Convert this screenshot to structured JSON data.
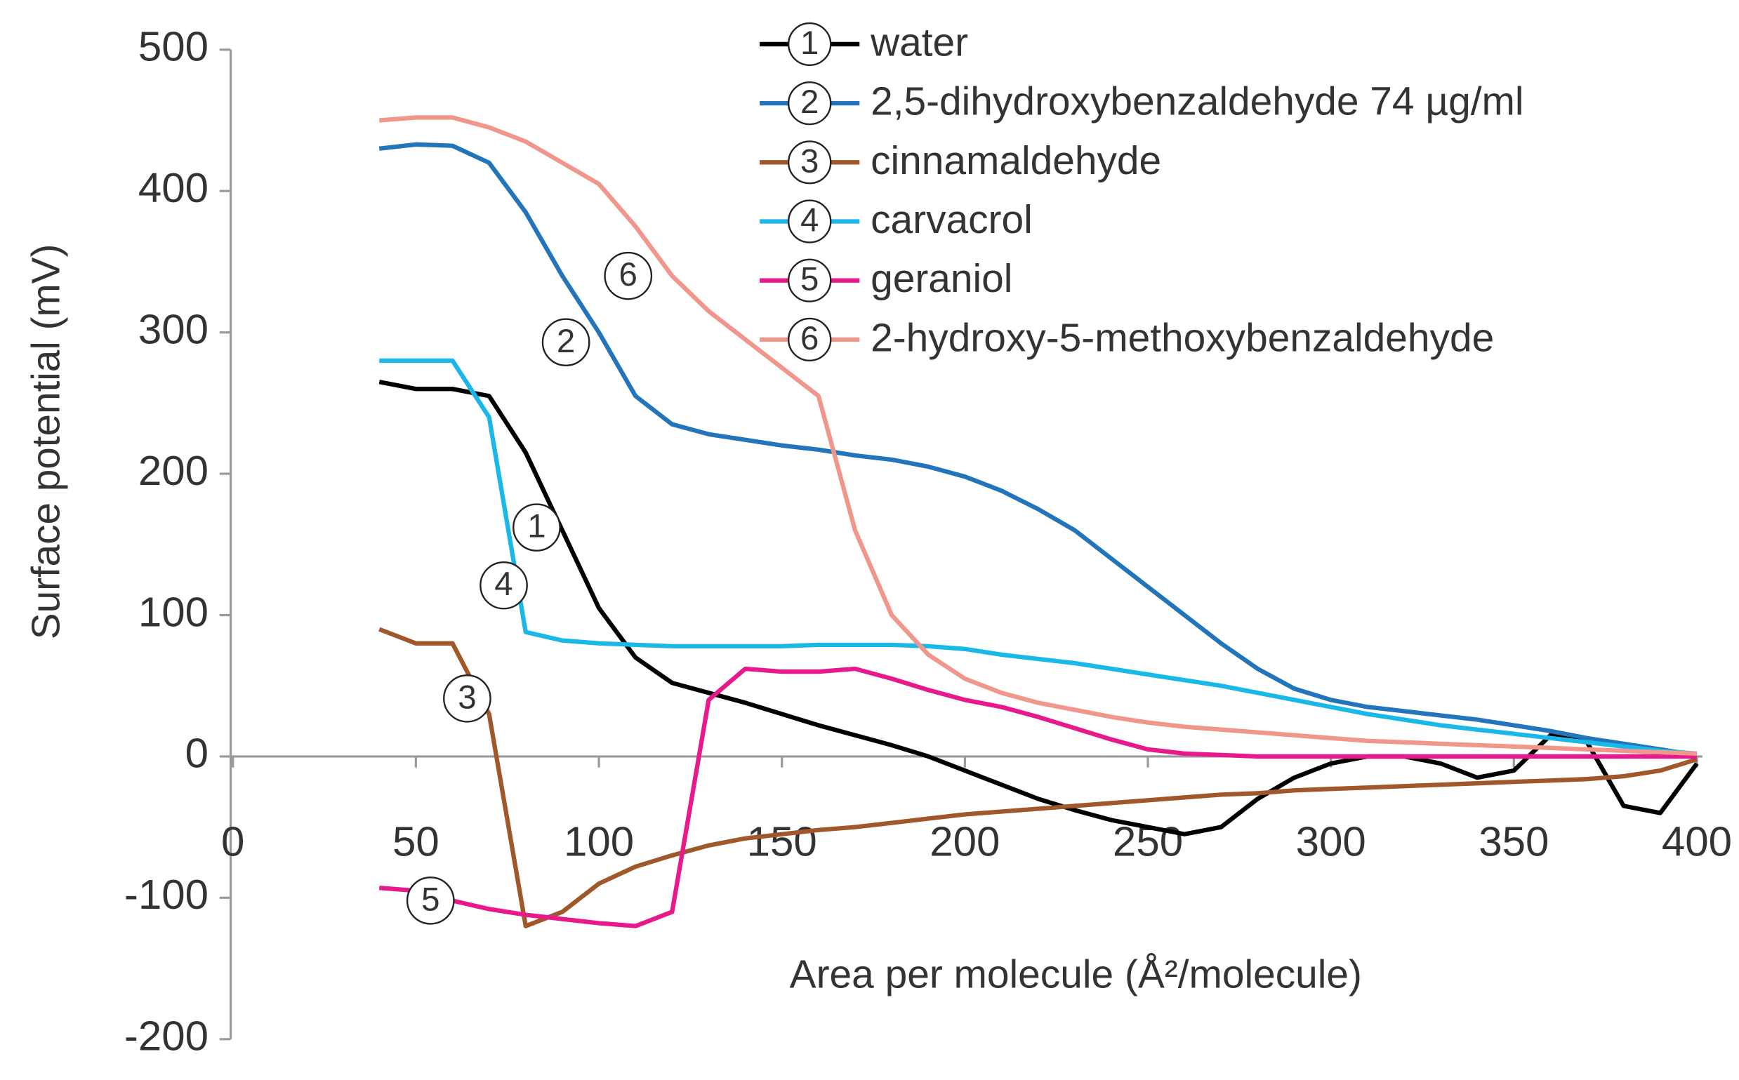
{
  "chart_data": {
    "type": "line",
    "x_label": "Area per molecule (Å²/molecule)",
    "y_label": "Surface potential (mV)",
    "xlim": [
      0,
      400
    ],
    "xticks": [
      0,
      50,
      100,
      150,
      200,
      250,
      300,
      350,
      400
    ],
    "ylim": [
      -200,
      500
    ],
    "yticks": [
      -200,
      -100,
      0,
      100,
      200,
      300,
      400,
      500
    ],
    "grid": false,
    "legend": "top-right",
    "x": [
      40,
      50,
      60,
      70,
      80,
      90,
      100,
      110,
      120,
      130,
      140,
      150,
      160,
      170,
      180,
      190,
      200,
      210,
      220,
      230,
      240,
      250,
      260,
      270,
      280,
      290,
      300,
      310,
      320,
      330,
      340,
      350,
      360,
      370,
      380,
      390,
      400
    ],
    "series": [
      {
        "name": "water",
        "label": "1",
        "color": "#000000",
        "values": [
          265,
          260,
          260,
          255,
          215,
          160,
          105,
          70,
          52,
          45,
          38,
          30,
          22,
          15,
          8,
          0,
          -10,
          -20,
          -30,
          -38,
          -45,
          -50,
          -55,
          -50,
          -30,
          -15,
          -5,
          0,
          0,
          -5,
          -15,
          -10,
          15,
          10,
          -35,
          -40,
          -5
        ]
      },
      {
        "name": "2,5-dihydroxybenzaldehyde 74 µg/ml",
        "label": "2",
        "color": "#2275bb",
        "values": [
          430,
          433,
          432,
          420,
          385,
          340,
          300,
          255,
          235,
          228,
          224,
          220,
          217,
          213,
          210,
          205,
          198,
          188,
          175,
          160,
          140,
          120,
          100,
          80,
          62,
          48,
          40,
          35,
          32,
          29,
          26,
          22,
          18,
          13,
          9,
          5,
          1
        ]
      },
      {
        "name": "cinnamaldehyde",
        "label": "3",
        "color": "#a0582a",
        "values": [
          90,
          80,
          80,
          30,
          -120,
          -110,
          -90,
          -78,
          -70,
          -63,
          -58,
          -55,
          -52,
          -50,
          -47,
          -44,
          -41,
          -39,
          -37,
          -35,
          -33,
          -31,
          -29,
          -27,
          -26,
          -24,
          -23,
          -22,
          -21,
          -20,
          -19,
          -18,
          -17,
          -16,
          -14,
          -10,
          -2
        ]
      },
      {
        "name": "carvacrol",
        "label": "4",
        "color": "#1ab8e8",
        "values": [
          280,
          280,
          280,
          240,
          88,
          82,
          80,
          79,
          78,
          78,
          78,
          78,
          79,
          79,
          79,
          78,
          76,
          72,
          69,
          66,
          62,
          58,
          54,
          50,
          45,
          40,
          35,
          30,
          26,
          22,
          19,
          16,
          13,
          10,
          7,
          4,
          2
        ]
      },
      {
        "name": "geraniol",
        "label": "5",
        "color": "#e8198c",
        "values": [
          -93,
          -95,
          -102,
          -108,
          -112,
          -115,
          -118,
          -120,
          -110,
          40,
          62,
          60,
          60,
          62,
          55,
          47,
          40,
          35,
          28,
          20,
          12,
          5,
          2,
          1,
          0,
          0,
          0,
          0,
          0,
          0,
          0,
          0,
          0,
          0,
          0,
          0,
          0
        ]
      },
      {
        "name": "2-hydroxy-5-methoxybenzaldehyde",
        "label": "6",
        "color": "#f0968a",
        "values": [
          450,
          452,
          452,
          445,
          435,
          420,
          405,
          375,
          340,
          315,
          295,
          275,
          255,
          160,
          100,
          72,
          55,
          45,
          38,
          33,
          28,
          24,
          21,
          19,
          17,
          15,
          13,
          11,
          10,
          9,
          8,
          7,
          6,
          5,
          4,
          3,
          2
        ]
      }
    ],
    "annotations": [
      {
        "text": "1",
        "x": 83,
        "y": 162
      },
      {
        "text": "2",
        "x": 91,
        "y": 293
      },
      {
        "text": "3",
        "x": 64,
        "y": 41
      },
      {
        "text": "4",
        "x": 74,
        "y": 121
      },
      {
        "text": "5",
        "x": 54,
        "y": -102
      },
      {
        "text": "6",
        "x": 108,
        "y": 340
      }
    ]
  }
}
